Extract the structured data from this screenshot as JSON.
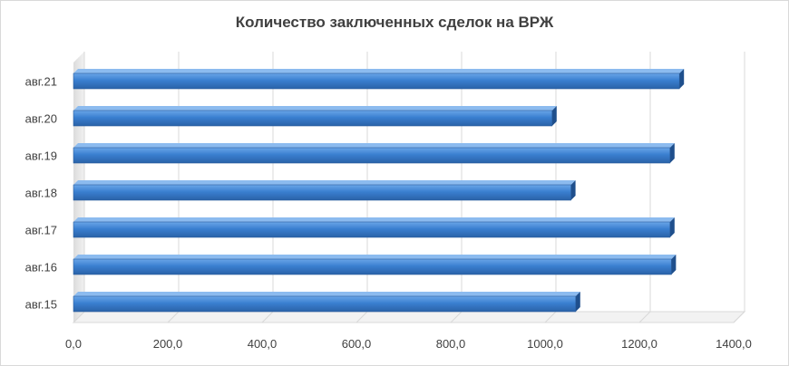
{
  "chart_data": {
    "type": "bar",
    "orientation": "horizontal",
    "title": "Количество заключенных  сделок на ВРЖ",
    "xlabel": "",
    "ylabel": "",
    "categories": [
      "авг.15",
      "авг.16",
      "авг.17",
      "авг.18",
      "авг.19",
      "авг.20",
      "авг.21"
    ],
    "values": [
      1065,
      1268,
      1265,
      1055,
      1265,
      1015,
      1285
    ],
    "xlim": [
      0,
      1400
    ],
    "x_ticks": [
      "0,0",
      "200,0",
      "400,0",
      "600,0",
      "800,0",
      "1000,0",
      "1200,0",
      "1400,0"
    ],
    "grid": true,
    "legend": "none",
    "bar_color": "#3a7fd0",
    "style": "3d"
  }
}
